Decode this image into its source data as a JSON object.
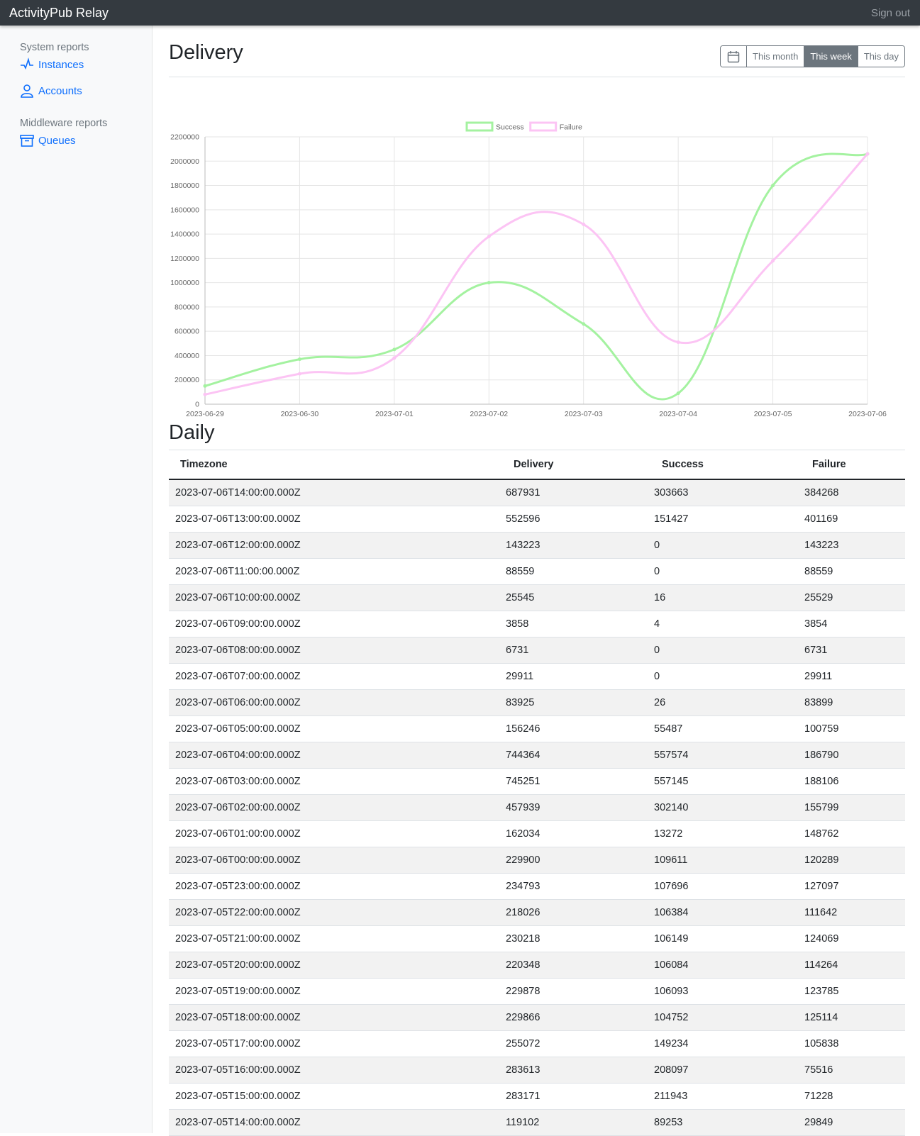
{
  "app": {
    "title": "ActivityPub Relay",
    "sign_out": "Sign out"
  },
  "sidebar": {
    "sections": [
      {
        "heading": "System reports",
        "items": [
          {
            "label": "Instances",
            "icon": "activity-icon"
          },
          {
            "label": "Accounts",
            "icon": "person-icon"
          }
        ]
      },
      {
        "heading": "Middleware reports",
        "items": [
          {
            "label": "Queues",
            "icon": "archive-icon"
          }
        ]
      }
    ]
  },
  "page": {
    "title": "Delivery",
    "range_buttons": [
      "This month",
      "This week",
      "This day"
    ],
    "active_range": "This week"
  },
  "chart_data": {
    "type": "line",
    "x": [
      "2023-06-29",
      "2023-06-30",
      "2023-07-01",
      "2023-07-02",
      "2023-07-03",
      "2023-07-04",
      "2023-07-05",
      "2023-07-06"
    ],
    "series": [
      {
        "name": "Success",
        "values": [
          150000,
          370000,
          450000,
          1000000,
          660000,
          90000,
          1800000,
          2060000
        ],
        "color": "#a4f2a0"
      },
      {
        "name": "Failure",
        "values": [
          80000,
          250000,
          380000,
          1380000,
          1480000,
          510000,
          1180000,
          2060000
        ],
        "color": "#fcc4f4"
      }
    ],
    "ylim": [
      0,
      2200000
    ],
    "yticks": [
      0,
      200000,
      400000,
      600000,
      800000,
      1000000,
      1200000,
      1400000,
      1600000,
      1800000,
      2000000,
      2200000
    ],
    "legend": "top-center",
    "grid": true
  },
  "daily": {
    "title": "Daily",
    "columns": [
      "Timezone",
      "Delivery",
      "Success",
      "Failure"
    ],
    "rows": [
      [
        "2023-07-06T14:00:00.000Z",
        "687931",
        "303663",
        "384268"
      ],
      [
        "2023-07-06T13:00:00.000Z",
        "552596",
        "151427",
        "401169"
      ],
      [
        "2023-07-06T12:00:00.000Z",
        "143223",
        "0",
        "143223"
      ],
      [
        "2023-07-06T11:00:00.000Z",
        "88559",
        "0",
        "88559"
      ],
      [
        "2023-07-06T10:00:00.000Z",
        "25545",
        "16",
        "25529"
      ],
      [
        "2023-07-06T09:00:00.000Z",
        "3858",
        "4",
        "3854"
      ],
      [
        "2023-07-06T08:00:00.000Z",
        "6731",
        "0",
        "6731"
      ],
      [
        "2023-07-06T07:00:00.000Z",
        "29911",
        "0",
        "29911"
      ],
      [
        "2023-07-06T06:00:00.000Z",
        "83925",
        "26",
        "83899"
      ],
      [
        "2023-07-06T05:00:00.000Z",
        "156246",
        "55487",
        "100759"
      ],
      [
        "2023-07-06T04:00:00.000Z",
        "744364",
        "557574",
        "186790"
      ],
      [
        "2023-07-06T03:00:00.000Z",
        "745251",
        "557145",
        "188106"
      ],
      [
        "2023-07-06T02:00:00.000Z",
        "457939",
        "302140",
        "155799"
      ],
      [
        "2023-07-06T01:00:00.000Z",
        "162034",
        "13272",
        "148762"
      ],
      [
        "2023-07-06T00:00:00.000Z",
        "229900",
        "109611",
        "120289"
      ],
      [
        "2023-07-05T23:00:00.000Z",
        "234793",
        "107696",
        "127097"
      ],
      [
        "2023-07-05T22:00:00.000Z",
        "218026",
        "106384",
        "111642"
      ],
      [
        "2023-07-05T21:00:00.000Z",
        "230218",
        "106149",
        "124069"
      ],
      [
        "2023-07-05T20:00:00.000Z",
        "220348",
        "106084",
        "114264"
      ],
      [
        "2023-07-05T19:00:00.000Z",
        "229878",
        "106093",
        "123785"
      ],
      [
        "2023-07-05T18:00:00.000Z",
        "229866",
        "104752",
        "125114"
      ],
      [
        "2023-07-05T17:00:00.000Z",
        "255072",
        "149234",
        "105838"
      ],
      [
        "2023-07-05T16:00:00.000Z",
        "283613",
        "208097",
        "75516"
      ],
      [
        "2023-07-05T15:00:00.000Z",
        "283171",
        "211943",
        "71228"
      ],
      [
        "2023-07-05T14:00:00.000Z",
        "119102",
        "89253",
        "29849"
      ]
    ]
  }
}
